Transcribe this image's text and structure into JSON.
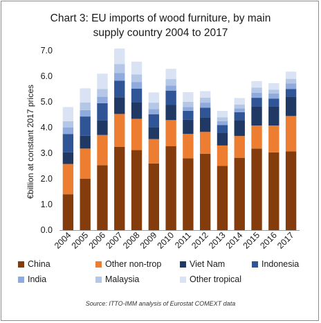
{
  "chart_data": {
    "type": "bar",
    "stacked": true,
    "title_line1": "Chart 3: EU imports of wood furniture, by main",
    "title_line2": "supply country 2004 to 2017",
    "ylabel": "€billion at constant 2017 prices",
    "xlabel": "",
    "ylim": [
      0,
      7.0
    ],
    "yticks": [
      "0.0",
      "1.0",
      "2.0",
      "3.0",
      "4.0",
      "5.0",
      "6.0",
      "7.0"
    ],
    "grid": false,
    "legend_position": "bottom",
    "categories": [
      "2004",
      "2005",
      "2006",
      "2007",
      "2008",
      "2009",
      "2010",
      "2011",
      "2012",
      "2013",
      "2014",
      "2015",
      "2016",
      "2017"
    ],
    "series": [
      {
        "name": "China",
        "color": "#843c0c",
        "values": [
          1.4,
          2.0,
          2.53,
          3.25,
          3.12,
          2.6,
          3.27,
          2.8,
          2.98,
          2.5,
          2.82,
          3.18,
          3.03,
          3.07
        ]
      },
      {
        "name": "Other non-trop",
        "color": "#ed7d31",
        "values": [
          1.18,
          1.18,
          1.18,
          1.28,
          1.22,
          0.95,
          1.02,
          0.95,
          0.85,
          0.8,
          0.85,
          0.9,
          1.05,
          1.38
        ]
      },
      {
        "name": "Viet Nam",
        "color": "#203864",
        "values": [
          0.45,
          0.5,
          0.57,
          0.65,
          0.65,
          0.47,
          0.6,
          0.55,
          0.57,
          0.5,
          0.6,
          0.75,
          0.75,
          0.75
        ]
      },
      {
        "name": "Indonesia",
        "color": "#2f5597",
        "values": [
          0.72,
          0.75,
          0.67,
          0.65,
          0.53,
          0.5,
          0.55,
          0.35,
          0.37,
          0.3,
          0.33,
          0.33,
          0.3,
          0.3
        ]
      },
      {
        "name": "India",
        "color": "#8faadc",
        "values": [
          0.25,
          0.25,
          0.25,
          0.3,
          0.25,
          0.2,
          0.2,
          0.15,
          0.2,
          0.15,
          0.15,
          0.2,
          0.2,
          0.22
        ]
      },
      {
        "name": "Malaysia",
        "color": "#b4c7e7",
        "values": [
          0.25,
          0.3,
          0.3,
          0.35,
          0.3,
          0.25,
          0.25,
          0.2,
          0.2,
          0.15,
          0.15,
          0.2,
          0.15,
          0.18
        ]
      },
      {
        "name": "Other tropical",
        "color": "#dae3f3",
        "values": [
          0.55,
          0.55,
          0.6,
          0.6,
          0.5,
          0.4,
          0.4,
          0.38,
          0.25,
          0.25,
          0.25,
          0.25,
          0.25,
          0.28
        ]
      }
    ],
    "source": "Source: ITTO-IMM analysis of Eurostat COMEXT data"
  }
}
